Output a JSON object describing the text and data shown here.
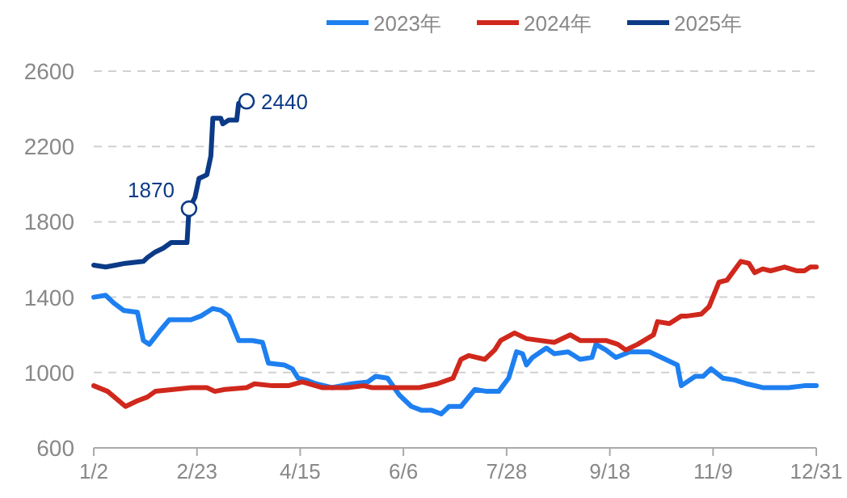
{
  "chart_data": {
    "type": "line",
    "xlim": [
      "--01-02",
      "--12-31"
    ],
    "xticks": [
      {
        "value": "--01-02",
        "label": "1/2"
      },
      {
        "value": "--02-23",
        "label": "2/23"
      },
      {
        "value": "--04-15",
        "label": "4/15"
      },
      {
        "value": "--06-06",
        "label": "6/6"
      },
      {
        "value": "--07-28",
        "label": "7/28"
      },
      {
        "value": "--09-18",
        "label": "9/18"
      },
      {
        "value": "--11-09",
        "label": "11/9"
      },
      {
        "value": "--12-31",
        "label": "12/31"
      }
    ],
    "ylim": [
      600,
      2600
    ],
    "yticks": [
      600,
      1000,
      1400,
      1800,
      2200,
      2600
    ],
    "grid": "y",
    "legend": "top",
    "marker": "none",
    "line_style": "solid",
    "series": [
      {
        "name": "2023年",
        "color": "#1e7ff0",
        "x": [
          "--01-02",
          "--01-08",
          "--01-12",
          "--01-17",
          "--01-24",
          "--01-27",
          "--01-30",
          "--02-05",
          "--02-09",
          "--02-20",
          "--02-25",
          "--03-02",
          "--03-06",
          "--03-10",
          "--03-15",
          "--03-22",
          "--03-27",
          "--03-30",
          "--04-07",
          "--04-11",
          "--04-14",
          "--04-18",
          "--04-23",
          "--05-01",
          "--05-11",
          "--05-19",
          "--05-23",
          "--05-29",
          "--06-04",
          "--06-10",
          "--06-15",
          "--06-20",
          "--06-25",
          "--06-29",
          "--07-05",
          "--07-12",
          "--07-18",
          "--07-24",
          "--07-29",
          "--08-02",
          "--08-05",
          "--08-07",
          "--08-10",
          "--08-17",
          "--08-21",
          "--08-28",
          "--09-03",
          "--09-09",
          "--09-11",
          "--09-16",
          "--09-21",
          "--09-28",
          "--10-08",
          "--10-16",
          "--10-22",
          "--10-24",
          "--10-31",
          "--11-04",
          "--11-08",
          "--11-14",
          "--11-20",
          "--11-26",
          "--12-04",
          "--12-17",
          "--12-25",
          "--12-31"
        ],
        "values": [
          1400,
          1410,
          1370,
          1330,
          1320,
          1170,
          1150,
          1230,
          1280,
          1280,
          1300,
          1340,
          1330,
          1300,
          1170,
          1170,
          1160,
          1050,
          1040,
          1020,
          970,
          960,
          940,
          920,
          940,
          950,
          980,
          970,
          880,
          820,
          800,
          800,
          780,
          820,
          820,
          910,
          900,
          900,
          970,
          1110,
          1100,
          1040,
          1080,
          1130,
          1100,
          1110,
          1070,
          1080,
          1150,
          1120,
          1080,
          1110,
          1110,
          1070,
          1040,
          930,
          980,
          980,
          1020,
          970,
          960,
          940,
          920,
          920,
          930,
          930
        ]
      },
      {
        "name": "2024年",
        "color": "#d0281c",
        "x": [
          "--01-02",
          "--01-09",
          "--01-18",
          "--01-24",
          "--01-29",
          "--02-02",
          "--02-20",
          "--02-25",
          "--02-28",
          "--03-03",
          "--03-08",
          "--03-19",
          "--03-23",
          "--04-01",
          "--04-09",
          "--04-16",
          "--04-26",
          "--05-09",
          "--05-17",
          "--05-21",
          "--05-25",
          "--06-14",
          "--06-23",
          "--07-01",
          "--07-05",
          "--07-09",
          "--07-17",
          "--07-22",
          "--07-25",
          "--08-01",
          "--08-07",
          "--08-21",
          "--08-29",
          "--09-03",
          "--09-16",
          "--09-22",
          "--09-26",
          "--10-02",
          "--10-10",
          "--10-12",
          "--10-18",
          "--10-24",
          "--10-27",
          "--11-03",
          "--11-07",
          "--11-12",
          "--11-16",
          "--11-23",
          "--11-27",
          "--11-30",
          "--12-04",
          "--12-08",
          "--12-15",
          "--12-21",
          "--12-25",
          "--12-28",
          "--12-31"
        ],
        "values": [
          930,
          900,
          820,
          850,
          870,
          900,
          920,
          920,
          920,
          900,
          910,
          920,
          940,
          930,
          930,
          950,
          920,
          920,
          930,
          920,
          920,
          920,
          940,
          970,
          1070,
          1090,
          1070,
          1120,
          1170,
          1210,
          1180,
          1160,
          1200,
          1170,
          1170,
          1150,
          1120,
          1150,
          1200,
          1270,
          1260,
          1300,
          1300,
          1310,
          1350,
          1480,
          1490,
          1590,
          1580,
          1530,
          1550,
          1540,
          1560,
          1540,
          1540,
          1560,
          1560
        ]
      },
      {
        "name": "2025年",
        "color": "#0c3a86",
        "x": [
          "--01-02",
          "--01-08",
          "--01-13",
          "--01-18",
          "--01-27",
          "--01-29",
          "--02-02",
          "--02-06",
          "--02-10",
          "--02-18",
          "--02-19",
          "--02-22",
          "--02-24",
          "--02-28",
          "--03-01",
          "--03-02",
          "--03-06",
          "--03-07",
          "--03-10",
          "--03-14",
          "--03-15",
          "--03-19"
        ],
        "values": [
          1570,
          1560,
          1570,
          1580,
          1590,
          1610,
          1640,
          1660,
          1690,
          1690,
          1870,
          1930,
          2030,
          2050,
          2150,
          2350,
          2350,
          2320,
          2340,
          2340,
          2430,
          2440
        ]
      }
    ],
    "annotations": [
      {
        "text": "1870",
        "x": "--02-19",
        "y": 1870
      },
      {
        "text": "2440",
        "x": "--03-19",
        "y": 2440
      }
    ]
  }
}
